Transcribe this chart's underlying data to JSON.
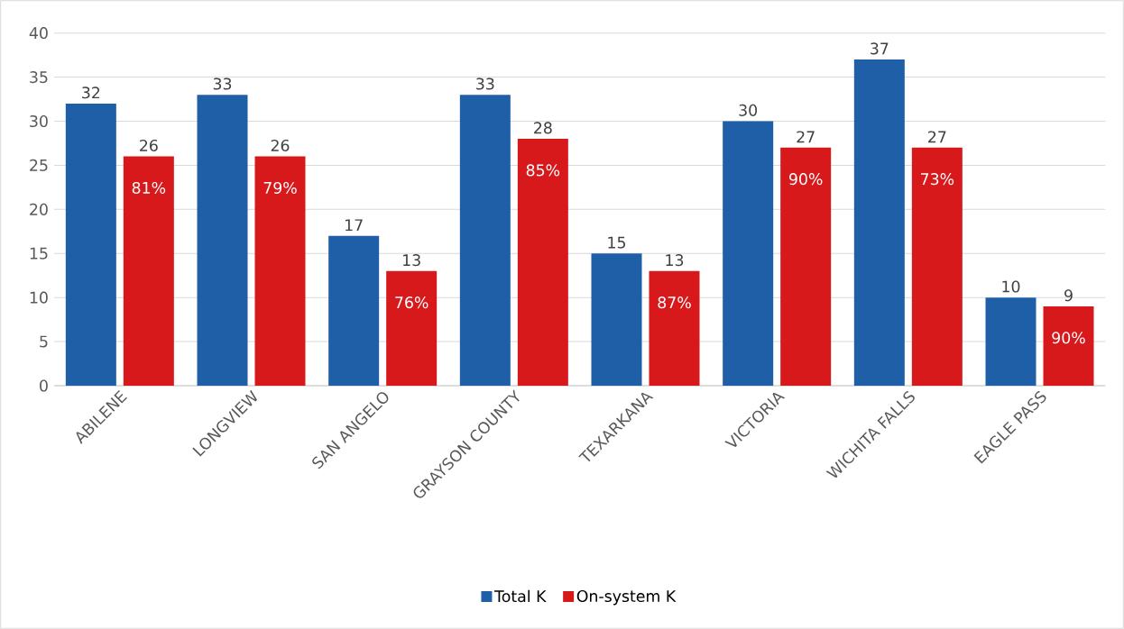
{
  "chart_data": {
    "type": "bar",
    "categories": [
      "ABILENE",
      "LONGVIEW",
      "SAN ANGELO",
      "GRAYSON COUNTY",
      "TEXARKANA",
      "VICTORIA",
      "WICHITA FALLS",
      "EAGLE PASS"
    ],
    "series": [
      {
        "name": "Total K",
        "color": "#1f5fa8",
        "values": [
          32,
          33,
          17,
          33,
          15,
          30,
          37,
          10
        ]
      },
      {
        "name": "On-system K",
        "color": "#d7191c",
        "values": [
          26,
          26,
          13,
          28,
          13,
          27,
          27,
          9
        ]
      }
    ],
    "annotations": [
      {
        "text": "81%",
        "x": "ABILENE",
        "y": 26
      },
      {
        "text": "79%",
        "x": "LONGVIEW",
        "y": 26
      },
      {
        "text": "76%",
        "x": "SAN ANGELO",
        "y": 13
      },
      {
        "text": "85%",
        "x": "GRAYSON COUNTY",
        "y": 28
      },
      {
        "text": "87%",
        "x": "TEXARKANA",
        "y": 13
      },
      {
        "text": "90%",
        "x": "VICTORIA",
        "y": 27
      },
      {
        "text": "73%",
        "x": "WICHITA FALLS",
        "y": 27
      },
      {
        "text": "90%",
        "x": "EAGLE PASS",
        "y": 9
      }
    ],
    "ylim": [
      0,
      40
    ],
    "yticks": [
      0,
      5,
      10,
      15,
      20,
      25,
      30,
      35,
      40
    ],
    "grid": "y",
    "legend": "bottom",
    "data_labels": true
  }
}
